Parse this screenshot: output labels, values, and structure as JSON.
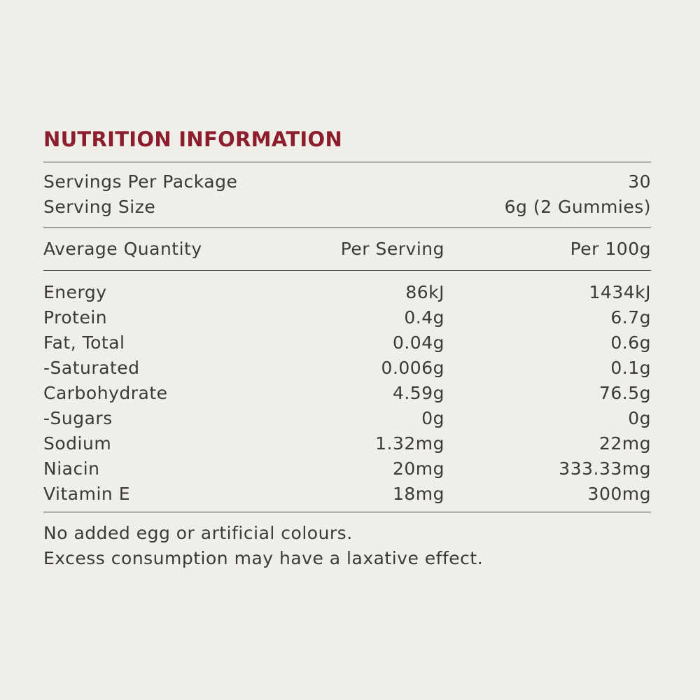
{
  "title": "NUTRITION INFORMATION",
  "servings": [
    {
      "label": "Servings Per Package",
      "value": "30"
    },
    {
      "label": "Serving Size",
      "value": "6g (2 Gummies)"
    }
  ],
  "table": {
    "header": [
      "Average Quantity",
      "Per Serving",
      "Per 100g"
    ],
    "rows": [
      [
        "Energy",
        "86kJ",
        "1434kJ"
      ],
      [
        "Protein",
        "0.4g",
        "6.7g"
      ],
      [
        "Fat, Total",
        "0.04g",
        "0.6g"
      ],
      [
        "-Saturated",
        "0.006g",
        "0.1g"
      ],
      [
        "Carbohydrate",
        "4.59g",
        "76.5g"
      ],
      [
        "-Sugars",
        "0g",
        "0g"
      ],
      [
        "Sodium",
        "1.32mg",
        "22mg"
      ],
      [
        "Niacin",
        "20mg",
        "333.33mg"
      ],
      [
        "Vitamin E",
        "18mg",
        "300mg"
      ]
    ]
  },
  "notes": [
    "No added egg or artificial colours.",
    "Excess consumption may have a laxative effect."
  ]
}
